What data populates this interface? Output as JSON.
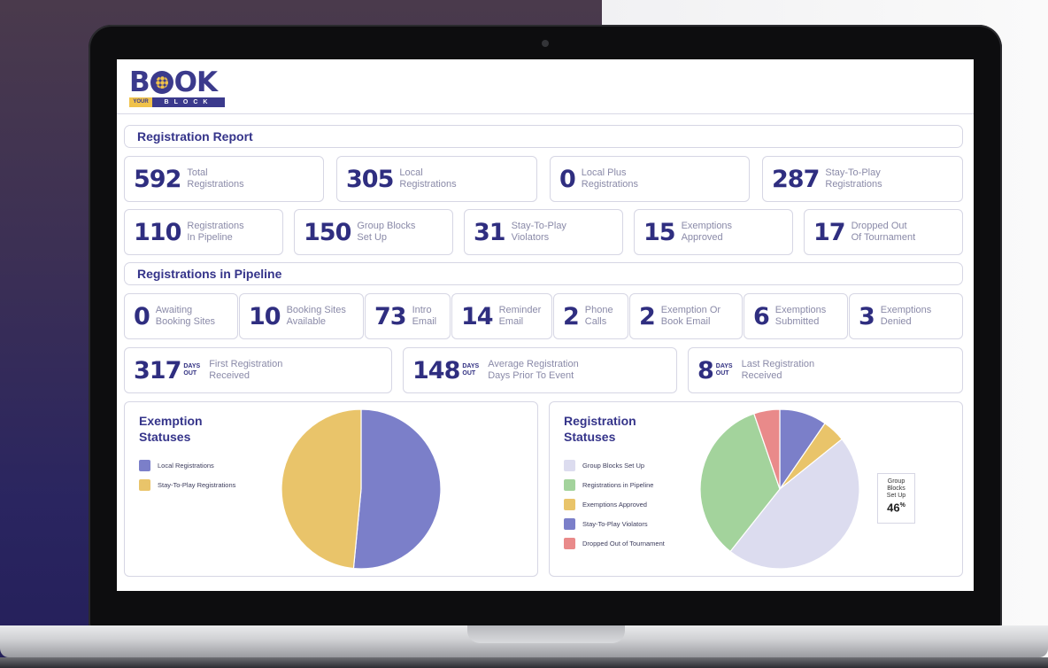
{
  "brand": {
    "logo_main_left": "B",
    "logo_main_right": "OK",
    "logo_sub_left": "YOUR",
    "logo_sub_right": "BLOCK",
    "colors": {
      "primary": "#35348a",
      "accent": "#f0c24a"
    }
  },
  "sections": {
    "registration_report": "Registration Report",
    "registrations_in_pipeline": "Registrations in Pipeline"
  },
  "report_row1": [
    {
      "num": "592",
      "l1": "Total",
      "l2": "Registrations"
    },
    {
      "num": "305",
      "l1": "Local",
      "l2": "Registrations"
    },
    {
      "num": "0",
      "l1": "Local Plus",
      "l2": "Registrations"
    },
    {
      "num": "287",
      "l1": "Stay-To-Play",
      "l2": "Registrations"
    }
  ],
  "report_row2": [
    {
      "num": "110",
      "l1": "Registrations",
      "l2": "In Pipeline"
    },
    {
      "num": "150",
      "l1": "Group Blocks",
      "l2": "Set Up"
    },
    {
      "num": "31",
      "l1": "Stay-To-Play",
      "l2": "Violators"
    },
    {
      "num": "15",
      "l1": "Exemptions",
      "l2": "Approved"
    },
    {
      "num": "17",
      "l1": "Dropped Out",
      "l2": "Of Tournament"
    }
  ],
  "pipeline_row": [
    {
      "num": "0",
      "l1": "Awaiting",
      "l2": "Booking Sites"
    },
    {
      "num": "10",
      "l1": "Booking Sites",
      "l2": "Available"
    },
    {
      "num": "73",
      "l1": "Intro",
      "l2": "Email"
    },
    {
      "num": "14",
      "l1": "Reminder",
      "l2": "Email"
    },
    {
      "num": "2",
      "l1": "Phone",
      "l2": "Calls"
    },
    {
      "num": "2",
      "l1": "Exemption Or",
      "l2": "Book Email"
    },
    {
      "num": "6",
      "l1": "Exemptions",
      "l2": "Submitted"
    },
    {
      "num": "3",
      "l1": "Exemptions",
      "l2": "Denied"
    }
  ],
  "days_row": [
    {
      "num": "317",
      "d1": "DAYS",
      "d2": "OUT",
      "l1": "First Registration",
      "l2": "Received"
    },
    {
      "num": "148",
      "d1": "DAYS",
      "d2": "OUT",
      "l1": "Average Registration",
      "l2": "Days Prior To Event"
    },
    {
      "num": "8",
      "d1": "DAYS",
      "d2": "OUT",
      "l1": "Last Registration",
      "l2": "Received"
    }
  ],
  "chart_data": [
    {
      "type": "pie",
      "title_line1": "Exemption",
      "title_line2": "Statuses",
      "legend": [
        "Local Registrations",
        "Stay-To-Play Registrations"
      ],
      "values": [
        305,
        287
      ],
      "colors": [
        "#7b7fc9",
        "#e9c46a"
      ]
    },
    {
      "type": "pie",
      "title_line1": "Registration",
      "title_line2": "Statuses",
      "legend": [
        "Group Blocks Set Up",
        "Registrations in Pipeline",
        "Exemptions Approved",
        "Stay-To-Play Violators",
        "Dropped Out of Tournament"
      ],
      "values": [
        150,
        110,
        15,
        31,
        17
      ],
      "colors": [
        "#dcdcef",
        "#a3d39c",
        "#e9c46a",
        "#7b7fc9",
        "#e98a8a"
      ],
      "callout_l1": "Group",
      "callout_l2": "Blocks",
      "callout_l3": "Set Up",
      "callout_value": "46",
      "callout_unit": "%"
    }
  ]
}
